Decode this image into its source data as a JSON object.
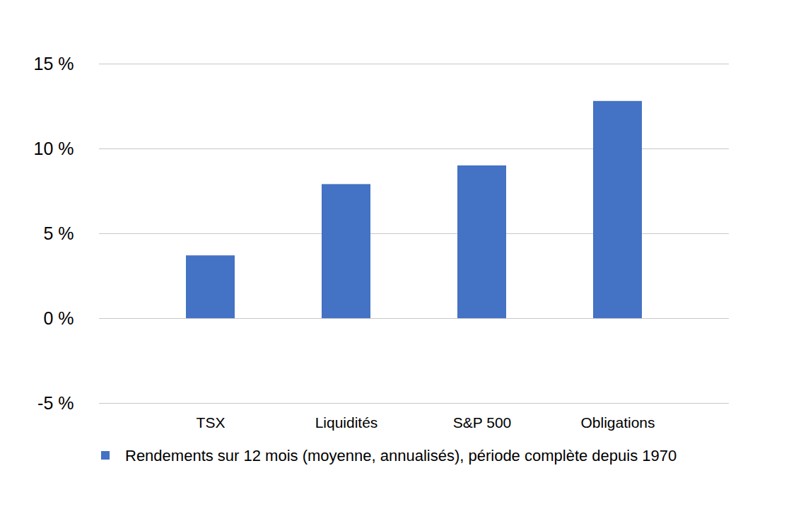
{
  "chart_data": {
    "type": "bar",
    "categories": [
      "TSX",
      "Liquidités",
      "S&P 500",
      "Obligations"
    ],
    "series": [
      {
        "name": "Rendements sur 12 mois (moyenne, annualisés), période complète depuis 1970",
        "color": "#4472c4",
        "values": [
          3.7,
          7.9,
          9.0,
          12.8
        ]
      }
    ],
    "ylim": [
      -5,
      15
    ],
    "yticks": [
      {
        "value": -5,
        "label": "-5 %"
      },
      {
        "value": 0,
        "label": "0 %"
      },
      {
        "value": 5,
        "label": "5 %"
      },
      {
        "value": 10,
        "label": "10 %"
      },
      {
        "value": 15,
        "label": "15 %"
      }
    ],
    "grid": true,
    "legend": "bottom"
  }
}
